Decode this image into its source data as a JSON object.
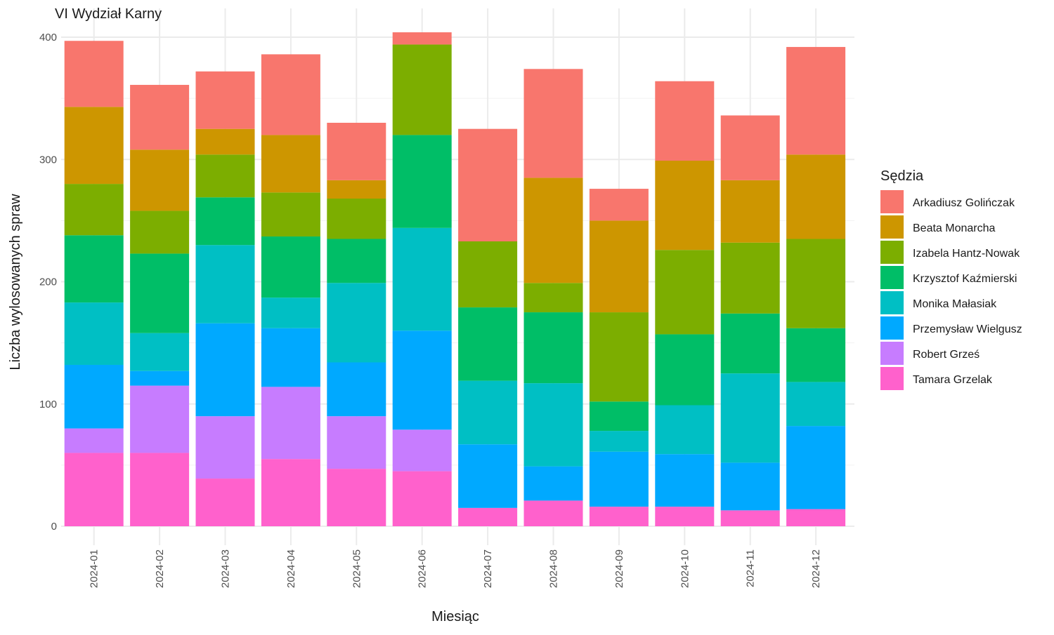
{
  "chart_data": {
    "type": "bar",
    "stacked": true,
    "title": "VI Wydział Karny",
    "xlabel": "Miesiąc",
    "ylabel": "Liczba wylosowanych spraw",
    "ylim": [
      0,
      415
    ],
    "yticks": [
      0,
      100,
      200,
      300,
      400
    ],
    "grid": true,
    "legend_title": "Sędzia",
    "legend_position": "right",
    "categories": [
      "2024-01",
      "2024-02",
      "2024-03",
      "2024-04",
      "2024-05",
      "2024-06",
      "2024-07",
      "2024-08",
      "2024-09",
      "2024-10",
      "2024-11",
      "2024-12"
    ],
    "series": [
      {
        "name": "Arkadiusz Golińczak",
        "color": "#F8766D",
        "values": [
          54,
          53,
          47,
          66,
          47,
          10,
          92,
          89,
          26,
          65,
          53,
          88
        ]
      },
      {
        "name": "Beata Monarcha",
        "color": "#CD9600",
        "values": [
          63,
          50,
          21,
          47,
          15,
          0,
          0,
          86,
          75,
          73,
          51,
          69
        ]
      },
      {
        "name": "Izabela Hantz-Nowak",
        "color": "#7CAE00",
        "values": [
          42,
          35,
          35,
          36,
          33,
          74,
          54,
          24,
          73,
          69,
          58,
          73
        ]
      },
      {
        "name": "Krzysztof Kaźmierski",
        "color": "#00BE67",
        "values": [
          55,
          65,
          39,
          50,
          36,
          76,
          60,
          58,
          24,
          58,
          49,
          44
        ]
      },
      {
        "name": "Monika Małasiak",
        "color": "#00BFC4",
        "values": [
          51,
          31,
          64,
          25,
          65,
          84,
          52,
          68,
          17,
          40,
          73,
          36
        ]
      },
      {
        "name": "Przemysław Wielgusz",
        "color": "#00A9FF",
        "values": [
          52,
          12,
          76,
          48,
          44,
          81,
          52,
          28,
          45,
          43,
          39,
          68
        ]
      },
      {
        "name": "Robert Grześ",
        "color": "#C77CFF",
        "values": [
          20,
          55,
          51,
          59,
          43,
          34,
          0,
          0,
          0,
          0,
          0,
          0
        ]
      },
      {
        "name": "Tamara Grzelak",
        "color": "#FF61CC",
        "values": [
          60,
          60,
          39,
          55,
          47,
          45,
          15,
          21,
          16,
          16,
          13,
          14
        ]
      }
    ]
  }
}
